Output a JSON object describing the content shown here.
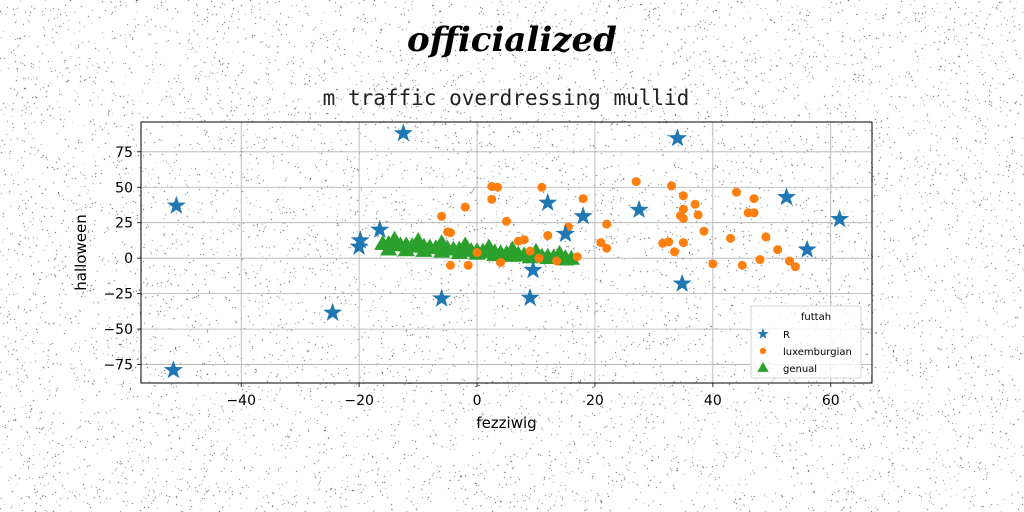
{
  "chart_data": {
    "type": "scatter",
    "suptitle": "officialized",
    "title": "m traffic overdressing mullid",
    "xlabel": "fezziwig",
    "ylabel": "halloween",
    "xlim": [
      -57,
      67
    ],
    "ylim": [
      -88,
      96
    ],
    "xticks": [
      -40,
      -20,
      0,
      20,
      40,
      60
    ],
    "yticks": [
      -75,
      -50,
      -25,
      0,
      25,
      50,
      75
    ],
    "grid": true,
    "legend": {
      "title": "futtah",
      "position": "lower right"
    },
    "series": [
      {
        "name": "R",
        "marker": "star",
        "color": "#1f77b4",
        "points": [
          [
            -51,
            37
          ],
          [
            -51.5,
            -79
          ],
          [
            -24.5,
            -38.5
          ],
          [
            -20,
            8
          ],
          [
            -19.8,
            12.5
          ],
          [
            -16.5,
            20
          ],
          [
            -12.5,
            88
          ],
          [
            -6,
            -28.5
          ],
          [
            9,
            -28
          ],
          [
            9.5,
            -8.5
          ],
          [
            12,
            39
          ],
          [
            15,
            17
          ],
          [
            18,
            29.5
          ],
          [
            27.5,
            34
          ],
          [
            34,
            84.5
          ],
          [
            34.8,
            -18
          ],
          [
            52.5,
            43
          ],
          [
            56,
            6
          ],
          [
            61.5,
            27.5
          ]
        ]
      },
      {
        "name": "luxemburgian",
        "marker": "circle",
        "color": "#ff7f0e",
        "points": [
          [
            -6,
            29.5
          ],
          [
            -5,
            18.5
          ],
          [
            -4.5,
            18
          ],
          [
            -4.5,
            -5
          ],
          [
            -2,
            36
          ],
          [
            -1.5,
            -5
          ],
          [
            0,
            4
          ],
          [
            2.5,
            50.5
          ],
          [
            3.5,
            50
          ],
          [
            2.5,
            41.5
          ],
          [
            4,
            -3
          ],
          [
            5,
            26
          ],
          [
            7,
            12
          ],
          [
            8,
            13
          ],
          [
            9,
            5
          ],
          [
            10.5,
            0
          ],
          [
            11,
            50
          ],
          [
            12,
            16
          ],
          [
            13.5,
            -2
          ],
          [
            15.5,
            22
          ],
          [
            17,
            1
          ],
          [
            18,
            42
          ],
          [
            21,
            11
          ],
          [
            22,
            24
          ],
          [
            22,
            7
          ],
          [
            27,
            54
          ],
          [
            31.5,
            10.5
          ],
          [
            32.5,
            11.5
          ],
          [
            33,
            51
          ],
          [
            33.5,
            4.5
          ],
          [
            34.5,
            30
          ],
          [
            35,
            34.5
          ],
          [
            35,
            44
          ],
          [
            35,
            11
          ],
          [
            37,
            38
          ],
          [
            37.5,
            30.5
          ],
          [
            38.5,
            19
          ],
          [
            40,
            -4
          ],
          [
            43,
            14
          ],
          [
            44,
            46.5
          ],
          [
            45,
            -5
          ],
          [
            46,
            32
          ],
          [
            47,
            32
          ],
          [
            47,
            42
          ],
          [
            48,
            -1
          ],
          [
            49,
            15
          ],
          [
            51,
            6
          ],
          [
            53,
            -2
          ],
          [
            54,
            -6
          ],
          [
            35,
            28
          ]
        ]
      },
      {
        "name": "genual",
        "marker": "triangle",
        "color": "#2ca02c",
        "points": [
          [
            -16,
            10
          ],
          [
            -15,
            10
          ],
          [
            -14,
            9.5
          ],
          [
            -13,
            9
          ],
          [
            -12,
            9
          ],
          [
            -11,
            8.5
          ],
          [
            -10,
            8
          ],
          [
            -9,
            8
          ],
          [
            -8,
            7.5
          ],
          [
            -7,
            7
          ],
          [
            -6,
            7
          ],
          [
            -5,
            6.5
          ],
          [
            -4,
            6
          ],
          [
            -3,
            6
          ],
          [
            -2,
            5.5
          ],
          [
            -1,
            5
          ],
          [
            0,
            5
          ],
          [
            1,
            4.5
          ],
          [
            2,
            4
          ],
          [
            3,
            4
          ],
          [
            4,
            3.5
          ],
          [
            5,
            3
          ],
          [
            6,
            3
          ],
          [
            7,
            2.5
          ],
          [
            8,
            2
          ],
          [
            9,
            2
          ],
          [
            10,
            1.5
          ],
          [
            11,
            1
          ],
          [
            12,
            1
          ],
          [
            13,
            0.5
          ],
          [
            14,
            0
          ],
          [
            15,
            0
          ],
          [
            16,
            -0.5
          ],
          [
            -15,
            6
          ],
          [
            -12,
            5.5
          ],
          [
            -9,
            5
          ],
          [
            -6,
            4.5
          ],
          [
            -3,
            3.5
          ],
          [
            0,
            3
          ],
          [
            3,
            2
          ],
          [
            6,
            1.5
          ],
          [
            9,
            0.5
          ],
          [
            12,
            0
          ],
          [
            15,
            -1
          ],
          [
            -14,
            13
          ],
          [
            -10,
            12
          ],
          [
            -6,
            10.5
          ],
          [
            -2,
            9
          ],
          [
            2,
            7.5
          ],
          [
            6,
            6
          ],
          [
            10,
            4.5
          ],
          [
            14,
            3
          ]
        ]
      }
    ]
  }
}
